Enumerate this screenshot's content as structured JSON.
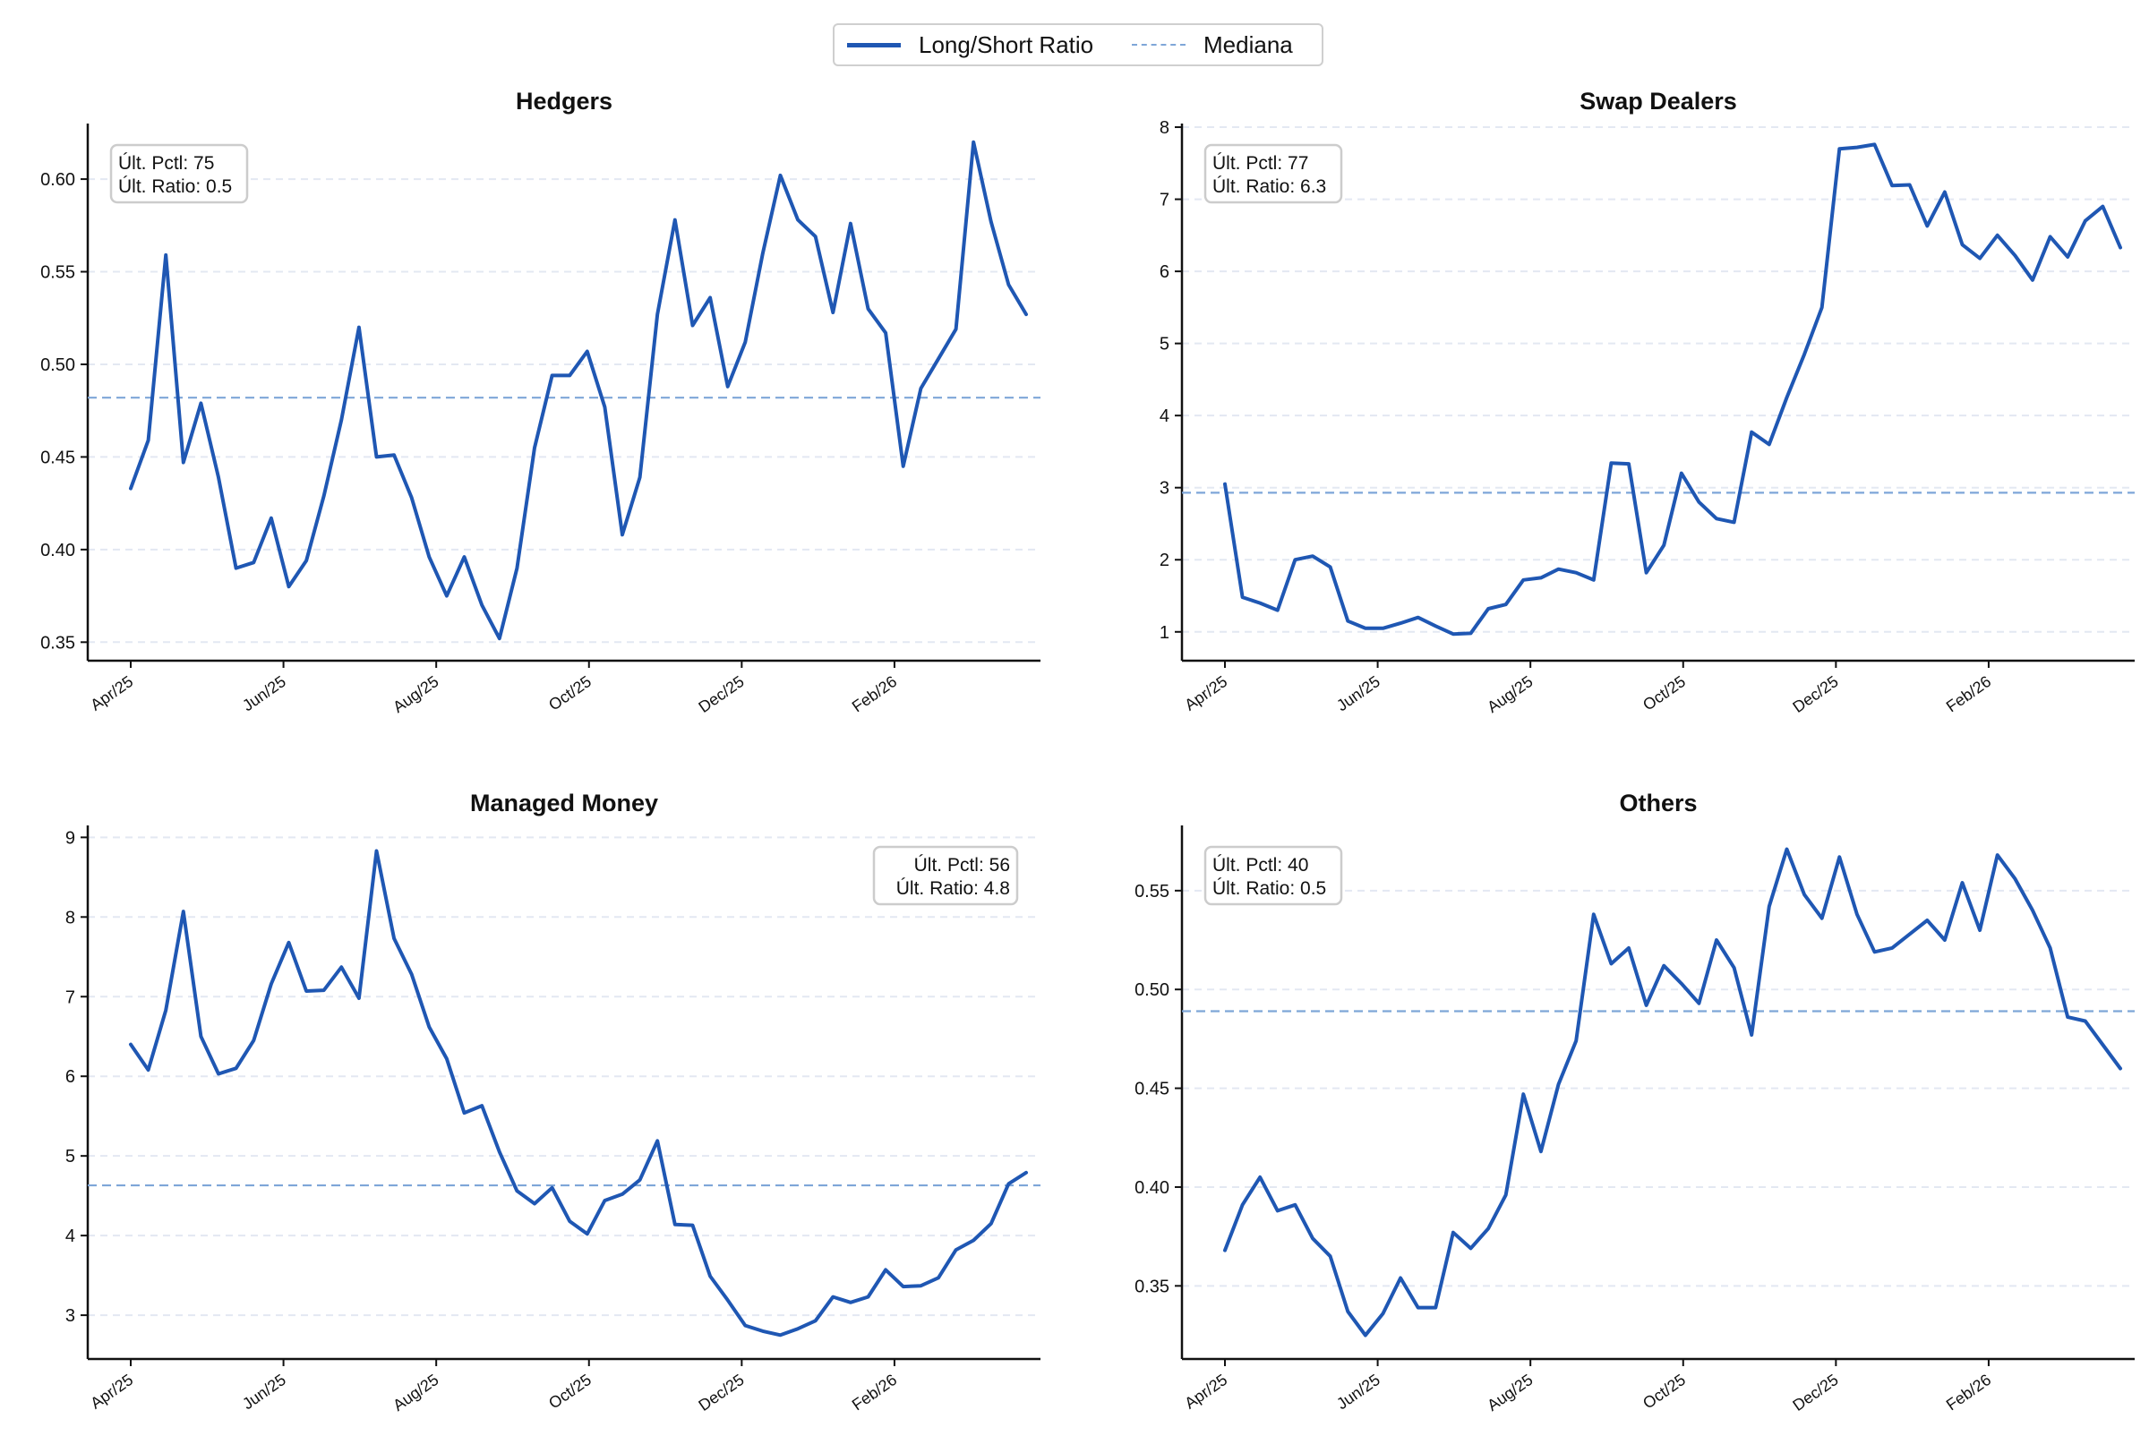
{
  "legend": {
    "ratio_label": "Long/Short Ratio",
    "median_label": "Mediana"
  },
  "colors": {
    "line": "#1f57b3",
    "median": "#7ea6d8",
    "grid": "#e3e8f2",
    "axis": "#111111"
  },
  "x_ticks": [
    "Apr/25",
    "Jun/25",
    "Aug/25",
    "Oct/25",
    "Dec/25",
    "Feb/26"
  ],
  "chart_data": [
    {
      "type": "line",
      "title": "Hedgers",
      "xlabel": "",
      "ylabel": "",
      "x_start": "2025-04-01",
      "x_interval": "weekly",
      "ylim": [
        0.34,
        0.63
      ],
      "yticks": [
        0.35,
        0.4,
        0.45,
        0.5,
        0.55,
        0.6
      ],
      "ytick_labels": [
        "0.35",
        "0.40",
        "0.45",
        "0.50",
        "0.55",
        "0.60"
      ],
      "median": 0.482,
      "annotation": {
        "position": "top-left",
        "lines": [
          "Últ. Pctl: 75",
          "Últ. Ratio: 0.5"
        ]
      },
      "series": [
        {
          "name": "Long/Short Ratio",
          "values": [
            0.433,
            0.459,
            0.559,
            0.447,
            0.479,
            0.439,
            0.39,
            0.393,
            0.417,
            0.38,
            0.394,
            0.429,
            0.47,
            0.52,
            0.45,
            0.451,
            0.428,
            0.396,
            0.375,
            0.396,
            0.37,
            0.352,
            0.39,
            0.455,
            0.494,
            0.494,
            0.507,
            0.477,
            0.408,
            0.439,
            0.527,
            0.578,
            0.521,
            0.536,
            0.488,
            0.512,
            0.56,
            0.602,
            0.578,
            0.569,
            0.528,
            0.576,
            0.53,
            0.517,
            0.445,
            0.487,
            0.503,
            0.519,
            0.62,
            0.577,
            0.543,
            0.527
          ]
        }
      ]
    },
    {
      "type": "line",
      "title": "Swap Dealers",
      "xlabel": "",
      "ylabel": "",
      "x_start": "2025-04-01",
      "x_interval": "weekly",
      "ylim": [
        0.6,
        8.05
      ],
      "yticks": [
        1,
        2,
        3,
        4,
        5,
        6,
        7,
        8
      ],
      "ytick_labels": [
        "1",
        "2",
        "3",
        "4",
        "5",
        "6",
        "7",
        "8"
      ],
      "median": 2.93,
      "annotation": {
        "position": "top-left",
        "lines": [
          "Últ. Pctl: 77",
          "Últ. Ratio: 6.3"
        ]
      },
      "series": [
        {
          "name": "Long/Short Ratio",
          "values": [
            3.05,
            1.48,
            1.4,
            1.3,
            2.0,
            2.05,
            1.9,
            1.15,
            1.05,
            1.05,
            1.12,
            1.2,
            1.08,
            0.97,
            0.98,
            1.32,
            1.38,
            1.72,
            1.75,
            1.87,
            1.82,
            1.72,
            3.34,
            3.33,
            1.82,
            2.2,
            3.2,
            2.8,
            2.57,
            2.52,
            3.77,
            3.6,
            4.25,
            4.85,
            5.5,
            7.7,
            7.72,
            7.76,
            7.19,
            7.2,
            6.63,
            7.1,
            6.37,
            6.18,
            6.5,
            6.22,
            5.88,
            6.48,
            6.2,
            6.7,
            6.9,
            6.33
          ]
        }
      ]
    },
    {
      "type": "line",
      "title": "Managed Money",
      "xlabel": "",
      "ylabel": "",
      "x_start": "2025-04-01",
      "x_interval": "weekly",
      "ylim": [
        2.45,
        9.15
      ],
      "yticks": [
        3,
        4,
        5,
        6,
        7,
        8,
        9
      ],
      "ytick_labels": [
        "3",
        "4",
        "5",
        "6",
        "7",
        "8",
        "9"
      ],
      "median": 4.63,
      "annotation": {
        "position": "top-right",
        "lines": [
          "Últ. Pctl: 56",
          "Últ. Ratio: 4.8"
        ]
      },
      "series": [
        {
          "name": "Long/Short Ratio",
          "values": [
            6.4,
            6.08,
            6.83,
            8.07,
            6.5,
            6.03,
            6.1,
            6.45,
            7.16,
            7.68,
            7.07,
            7.08,
            7.37,
            6.98,
            8.83,
            7.73,
            7.28,
            6.62,
            6.22,
            5.54,
            5.63,
            5.05,
            4.56,
            4.4,
            4.6,
            4.18,
            4.02,
            4.44,
            4.52,
            4.7,
            5.19,
            4.14,
            4.13,
            3.49,
            3.19,
            2.87,
            2.8,
            2.75,
            2.83,
            2.93,
            3.23,
            3.16,
            3.23,
            3.57,
            3.36,
            3.37,
            3.47,
            3.82,
            3.94,
            4.15,
            4.65,
            4.79
          ]
        }
      ]
    },
    {
      "type": "line",
      "title": "Others",
      "xlabel": "",
      "ylabel": "",
      "x_start": "2025-04-01",
      "x_interval": "weekly",
      "ylim": [
        0.313,
        0.583
      ],
      "yticks": [
        0.35,
        0.4,
        0.45,
        0.5,
        0.55
      ],
      "ytick_labels": [
        "0.35",
        "0.40",
        "0.45",
        "0.50",
        "0.55"
      ],
      "median": 0.489,
      "annotation": {
        "position": "top-left",
        "lines": [
          "Últ. Pctl: 40",
          "Últ. Ratio: 0.5"
        ]
      },
      "series": [
        {
          "name": "Long/Short Ratio",
          "values": [
            0.368,
            0.391,
            0.405,
            0.388,
            0.391,
            0.374,
            0.365,
            0.337,
            0.325,
            0.336,
            0.354,
            0.339,
            0.339,
            0.377,
            0.369,
            0.379,
            0.396,
            0.447,
            0.418,
            0.452,
            0.474,
            0.538,
            0.513,
            0.521,
            0.492,
            0.512,
            0.503,
            0.493,
            0.525,
            0.511,
            0.477,
            0.542,
            0.571,
            0.548,
            0.536,
            0.567,
            0.538,
            0.519,
            0.521,
            0.528,
            0.535,
            0.525,
            0.554,
            0.53,
            0.568,
            0.556,
            0.54,
            0.521,
            0.486,
            0.484,
            0.472,
            0.46
          ]
        }
      ]
    }
  ]
}
